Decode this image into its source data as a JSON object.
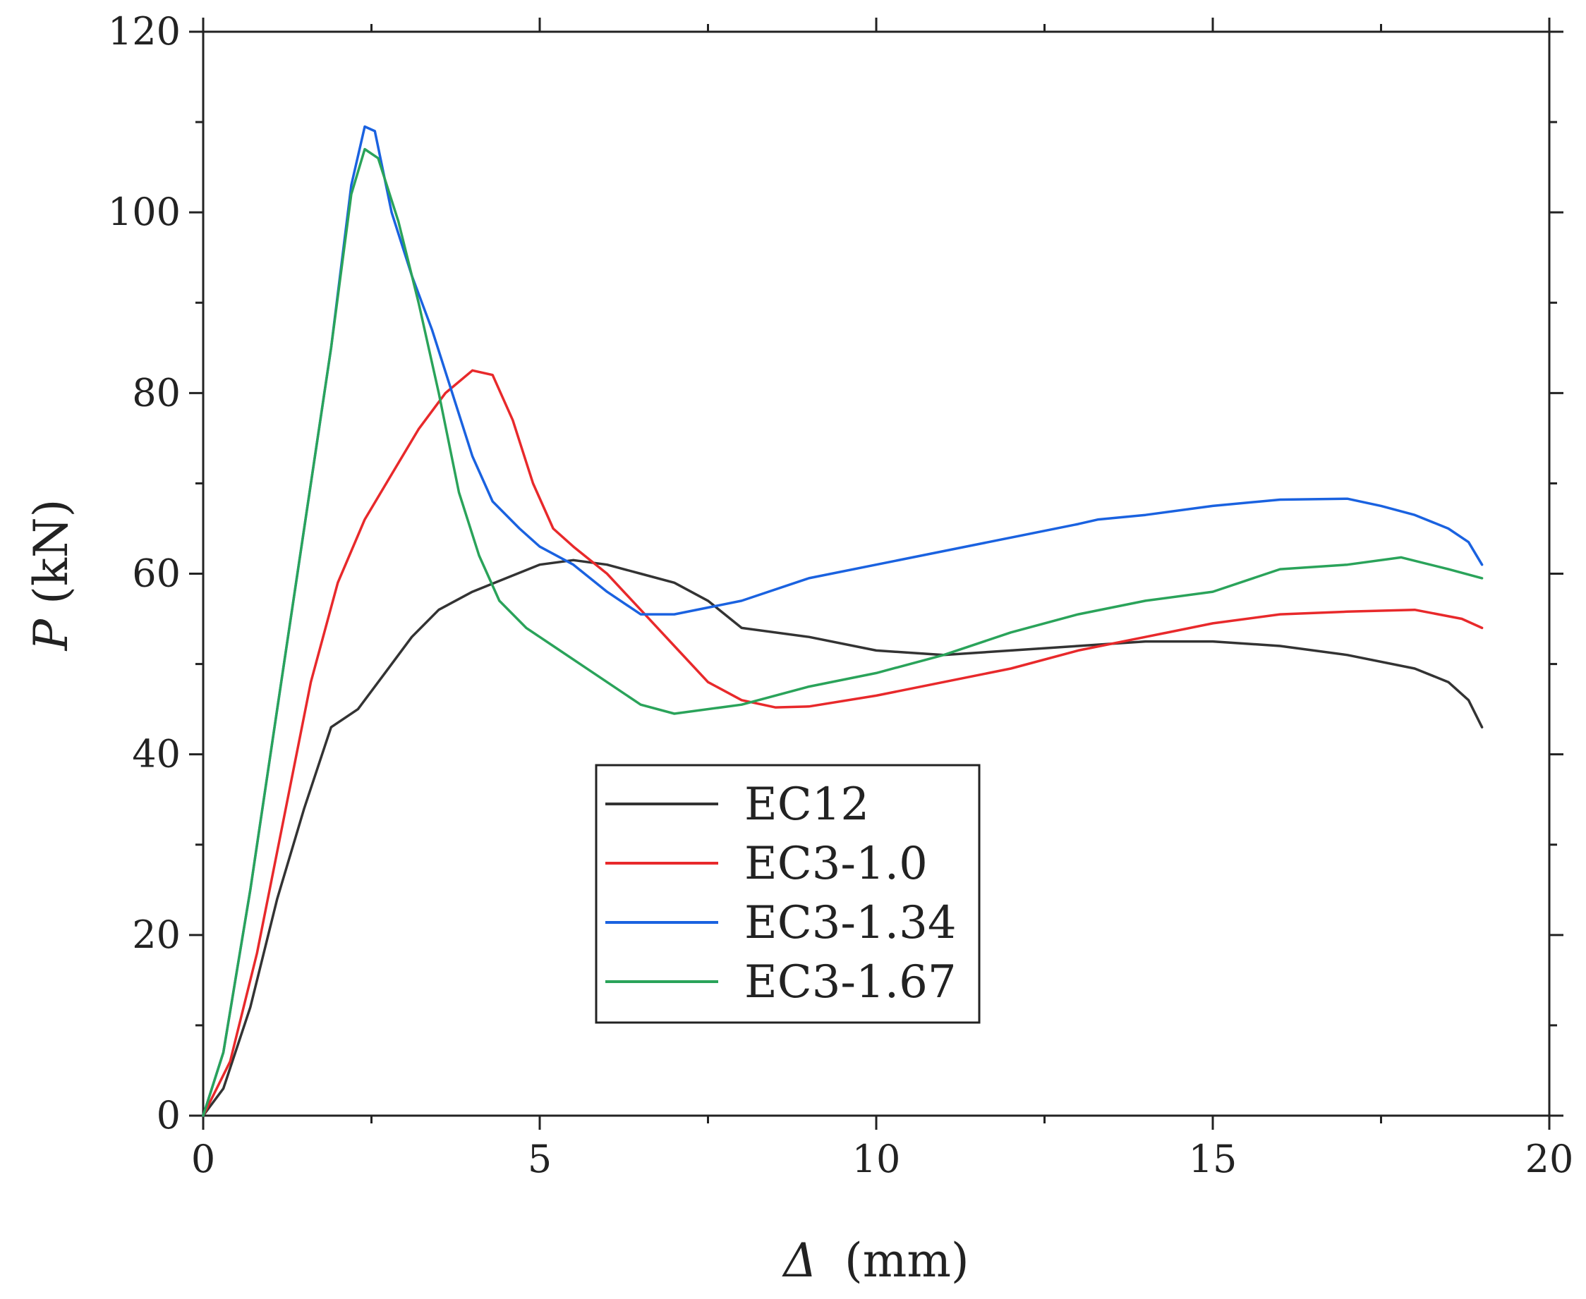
{
  "chart_data": {
    "type": "line",
    "title": "",
    "xlabel_symbol": "Δ",
    "xlabel_unit": "(mm)",
    "ylabel_symbol": "P",
    "ylabel_unit": "(kN)",
    "xlim": [
      0,
      20
    ],
    "ylim": [
      0,
      120
    ],
    "xticks": [
      0,
      5,
      10,
      15,
      20
    ],
    "yticks": [
      0,
      20,
      40,
      60,
      80,
      100,
      120
    ],
    "xtick_labels": [
      "0",
      "5",
      "10",
      "15",
      "20"
    ],
    "ytick_labels": [
      "0",
      "20",
      "40",
      "60",
      "80",
      "100",
      "120"
    ],
    "grid": false,
    "legend_position": "center",
    "series": [
      {
        "name": "EC12",
        "color": "#333333",
        "points": [
          [
            0,
            0
          ],
          [
            0.3,
            3
          ],
          [
            0.7,
            12
          ],
          [
            1.1,
            24
          ],
          [
            1.5,
            34
          ],
          [
            1.9,
            43
          ],
          [
            2.3,
            45
          ],
          [
            2.7,
            49
          ],
          [
            3.1,
            53
          ],
          [
            3.5,
            56
          ],
          [
            4,
            58
          ],
          [
            4.5,
            59.5
          ],
          [
            5,
            61
          ],
          [
            5.5,
            61.5
          ],
          [
            6,
            61
          ],
          [
            6.5,
            60
          ],
          [
            7,
            59
          ],
          [
            7.5,
            57
          ],
          [
            8,
            54
          ],
          [
            9,
            53
          ],
          [
            10,
            51.5
          ],
          [
            11,
            51
          ],
          [
            12,
            51.5
          ],
          [
            13,
            52
          ],
          [
            14,
            52.5
          ],
          [
            15,
            52.5
          ],
          [
            16,
            52
          ],
          [
            17,
            51
          ],
          [
            18,
            49.5
          ],
          [
            18.5,
            48
          ],
          [
            18.8,
            46
          ],
          [
            19,
            43
          ]
        ]
      },
      {
        "name": "EC3-1.0",
        "color": "#e8292b",
        "points": [
          [
            0,
            0
          ],
          [
            0.4,
            6
          ],
          [
            0.8,
            18
          ],
          [
            1.2,
            33
          ],
          [
            1.6,
            48
          ],
          [
            2,
            59
          ],
          [
            2.4,
            66
          ],
          [
            2.8,
            71
          ],
          [
            3.2,
            76
          ],
          [
            3.6,
            80
          ],
          [
            4,
            82.5
          ],
          [
            4.3,
            82
          ],
          [
            4.6,
            77
          ],
          [
            4.9,
            70
          ],
          [
            5.2,
            65
          ],
          [
            5.5,
            63
          ],
          [
            6,
            60
          ],
          [
            6.5,
            56
          ],
          [
            7,
            52
          ],
          [
            7.5,
            48
          ],
          [
            8,
            46
          ],
          [
            8.5,
            45.2
          ],
          [
            9,
            45.3
          ],
          [
            10,
            46.5
          ],
          [
            11,
            48
          ],
          [
            12,
            49.5
          ],
          [
            13,
            51.5
          ],
          [
            14,
            53
          ],
          [
            15,
            54.5
          ],
          [
            16,
            55.5
          ],
          [
            17,
            55.8
          ],
          [
            18,
            56
          ],
          [
            18.7,
            55
          ],
          [
            19,
            54
          ]
        ]
      },
      {
        "name": "EC3-1.34",
        "color": "#1a62e0",
        "points": [
          [
            0,
            0
          ],
          [
            0.3,
            7
          ],
          [
            0.7,
            25
          ],
          [
            1.1,
            45
          ],
          [
            1.5,
            65
          ],
          [
            1.9,
            85
          ],
          [
            2.2,
            103
          ],
          [
            2.4,
            109.5
          ],
          [
            2.55,
            109
          ],
          [
            2.8,
            100
          ],
          [
            3.1,
            93
          ],
          [
            3.4,
            87
          ],
          [
            3.7,
            80
          ],
          [
            4,
            73
          ],
          [
            4.3,
            68
          ],
          [
            4.7,
            65
          ],
          [
            5,
            63
          ],
          [
            5.5,
            61
          ],
          [
            6,
            58
          ],
          [
            6.5,
            55.5
          ],
          [
            7,
            55.5
          ],
          [
            8,
            57
          ],
          [
            9,
            59.5
          ],
          [
            10,
            61
          ],
          [
            11,
            62.5
          ],
          [
            12,
            64
          ],
          [
            13,
            65.5
          ],
          [
            13.3,
            66
          ],
          [
            14,
            66.5
          ],
          [
            15,
            67.5
          ],
          [
            16,
            68.2
          ],
          [
            17,
            68.3
          ],
          [
            17.5,
            67.5
          ],
          [
            18,
            66.5
          ],
          [
            18.5,
            65
          ],
          [
            18.8,
            63.5
          ],
          [
            19,
            61
          ]
        ]
      },
      {
        "name": "EC3-1.67",
        "color": "#2aa35a",
        "points": [
          [
            0,
            0
          ],
          [
            0.3,
            7
          ],
          [
            0.7,
            25
          ],
          [
            1.1,
            45
          ],
          [
            1.5,
            65
          ],
          [
            1.9,
            85
          ],
          [
            2.2,
            102
          ],
          [
            2.4,
            107
          ],
          [
            2.6,
            106
          ],
          [
            2.9,
            99
          ],
          [
            3.2,
            90
          ],
          [
            3.5,
            80
          ],
          [
            3.8,
            69
          ],
          [
            4.1,
            62
          ],
          [
            4.4,
            57
          ],
          [
            4.8,
            54
          ],
          [
            5.2,
            52
          ],
          [
            5.6,
            50
          ],
          [
            6,
            48
          ],
          [
            6.5,
            45.5
          ],
          [
            7,
            44.5
          ],
          [
            8,
            45.5
          ],
          [
            9,
            47.5
          ],
          [
            10,
            49
          ],
          [
            11,
            51
          ],
          [
            12,
            53.5
          ],
          [
            13,
            55.5
          ],
          [
            14,
            57
          ],
          [
            15,
            58
          ],
          [
            16,
            60.5
          ],
          [
            17,
            61
          ],
          [
            17.8,
            61.8
          ],
          [
            18.5,
            60.5
          ],
          [
            19,
            59.5
          ]
        ]
      }
    ]
  }
}
